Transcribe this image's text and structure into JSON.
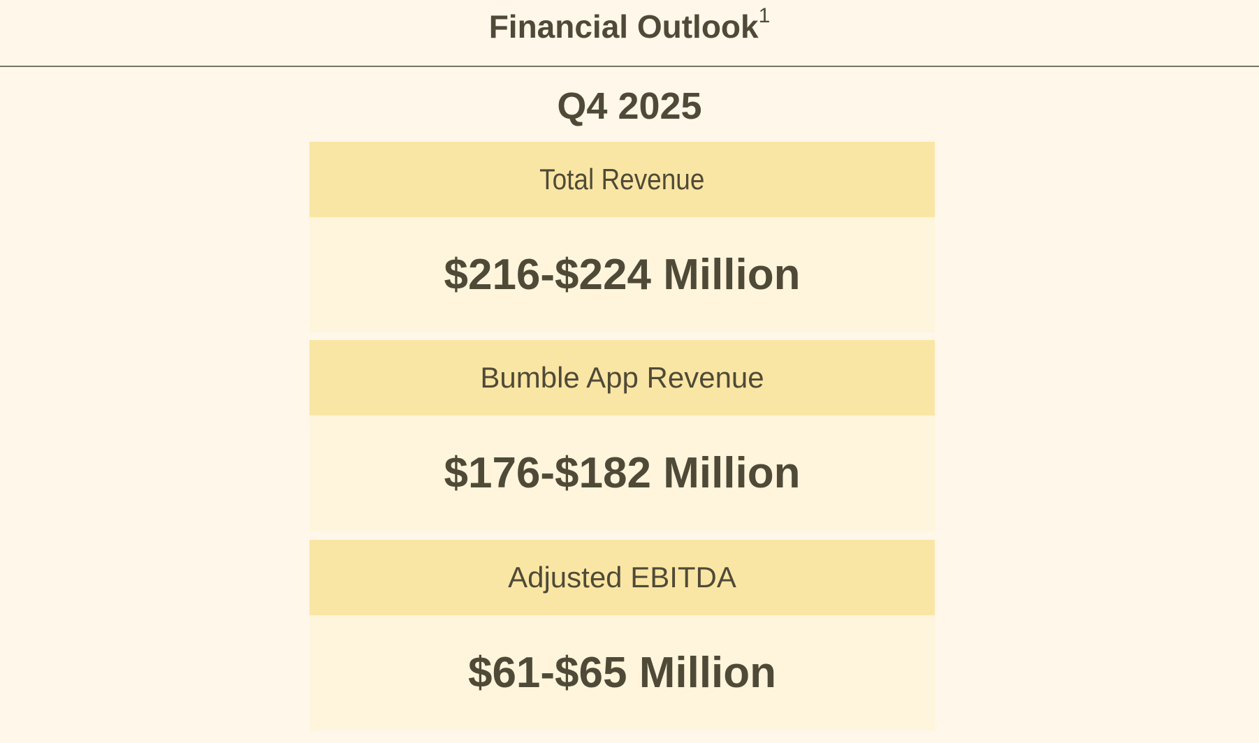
{
  "header": {
    "title": "Financial Outlook",
    "footnote_marker": "1"
  },
  "period": "Q4 2025",
  "metrics": [
    {
      "label": "Total Revenue",
      "value": "$216-$224 Million"
    },
    {
      "label": "Bumble App Revenue",
      "value": "$176-$182 Million"
    },
    {
      "label": "Adjusted EBITDA",
      "value": "$61-$65 Million"
    }
  ],
  "colors": {
    "background": "#fef7ea",
    "label_band": "#fae6a4",
    "value_band": "#fef5dc",
    "text": "#4f4a37",
    "divider": "#7a7463"
  }
}
